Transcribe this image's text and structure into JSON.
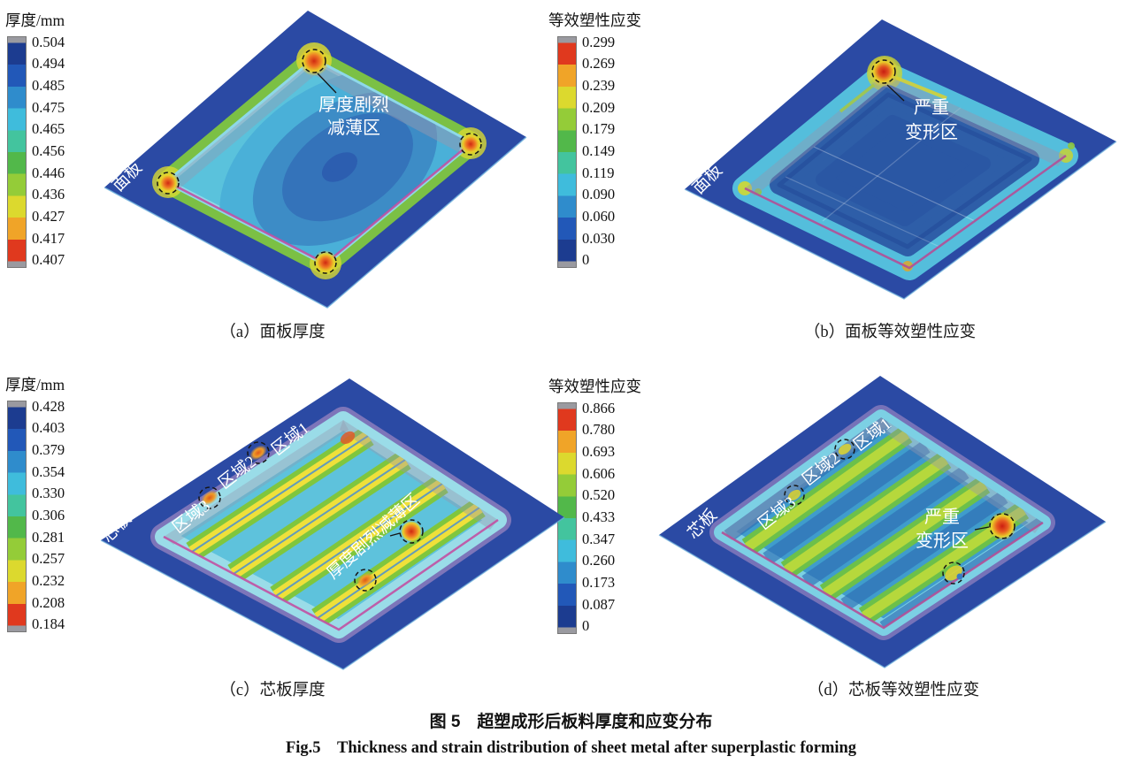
{
  "figure": {
    "title_zh": "图 5　超塑成形后板料厚度和应变分布",
    "title_en": "Fig.5　Thickness and strain distribution of sheet metal after superplastic forming"
  },
  "colors": {
    "plate_blue": "#2b4aa4",
    "cap_gray": "#9a9aa0",
    "scale_thickness": [
      "#1c3c90",
      "#2258b8",
      "#2f8ccc",
      "#3fbcdc",
      "#43c49e",
      "#52b84a",
      "#94cc38",
      "#dcd92e",
      "#f0a428",
      "#e0391e"
    ],
    "scale_strain": [
      "#e0391e",
      "#f0a428",
      "#dcd92e",
      "#94cc38",
      "#52b84a",
      "#43c49e",
      "#3fbcdc",
      "#2f8ccc",
      "#2258b8",
      "#1c3c90"
    ]
  },
  "panels": {
    "a": {
      "caption": "（a）面板厚度",
      "legend_title": "厚度/mm",
      "legend_values": [
        "0.504",
        "0.494",
        "0.485",
        "0.475",
        "0.465",
        "0.456",
        "0.446",
        "0.436",
        "0.427",
        "0.417",
        "0.407"
      ],
      "part_label": "面板",
      "callout_line1": "厚度剧烈",
      "callout_line2": "减薄区"
    },
    "b": {
      "caption": "（b）面板等效塑性应变",
      "legend_title": "等效塑性应变",
      "legend_values": [
        "0.299",
        "0.269",
        "0.239",
        "0.209",
        "0.179",
        "0.149",
        "0.119",
        "0.090",
        "0.060",
        "0.030",
        "0"
      ],
      "part_label": "面板",
      "callout_line1": "严重",
      "callout_line2": "变形区"
    },
    "c": {
      "caption": "（c）芯板厚度",
      "legend_title": "厚度/mm",
      "legend_values": [
        "0.428",
        "0.403",
        "0.379",
        "0.354",
        "0.330",
        "0.306",
        "0.281",
        "0.257",
        "0.232",
        "0.208",
        "0.184"
      ],
      "part_label": "芯板",
      "region1": "区域1",
      "region2": "区域2",
      "region3": "区域3",
      "callout": "厚度剧烈减薄区"
    },
    "d": {
      "caption": "（d）芯板等效塑性应变",
      "legend_title": "等效塑性应变",
      "legend_values": [
        "0.866",
        "0.780",
        "0.693",
        "0.606",
        "0.520",
        "0.433",
        "0.347",
        "0.260",
        "0.173",
        "0.087",
        "0"
      ],
      "part_label": "芯板",
      "region1": "区域1",
      "region2": "区域2",
      "region3": "区域3",
      "callout_line1": "严重",
      "callout_line2": "变形区"
    }
  },
  "chart_data": [
    {
      "panel": "a",
      "type": "heatmap",
      "subtype": "FEM-contour",
      "quantity": "厚度/mm",
      "target": "面板",
      "legend_ticks": [
        0.504,
        0.494,
        0.485,
        0.475,
        0.465,
        0.456,
        0.446,
        0.436,
        0.427,
        0.417,
        0.407
      ],
      "min": 0.407,
      "max": 0.504,
      "colormap": "blue(max)-to-red(min)",
      "annotations": [
        "厚度剧烈减薄区",
        "面板"
      ]
    },
    {
      "panel": "b",
      "type": "heatmap",
      "subtype": "FEM-contour",
      "quantity": "等效塑性应变",
      "target": "面板",
      "legend_ticks": [
        0.299,
        0.269,
        0.239,
        0.209,
        0.179,
        0.149,
        0.119,
        0.09,
        0.06,
        0.03,
        0
      ],
      "min": 0,
      "max": 0.299,
      "colormap": "red(max)-to-blue(min)",
      "annotations": [
        "严重变形区",
        "面板"
      ]
    },
    {
      "panel": "c",
      "type": "heatmap",
      "subtype": "FEM-contour",
      "quantity": "厚度/mm",
      "target": "芯板",
      "legend_ticks": [
        0.428,
        0.403,
        0.379,
        0.354,
        0.33,
        0.306,
        0.281,
        0.257,
        0.232,
        0.208,
        0.184
      ],
      "min": 0.184,
      "max": 0.428,
      "colormap": "blue(max)-to-red(min)",
      "annotations": [
        "区域1",
        "区域2",
        "区域3",
        "厚度剧烈减薄区",
        "芯板"
      ]
    },
    {
      "panel": "d",
      "type": "heatmap",
      "subtype": "FEM-contour",
      "quantity": "等效塑性应变",
      "target": "芯板",
      "legend_ticks": [
        0.866,
        0.78,
        0.693,
        0.606,
        0.52,
        0.433,
        0.347,
        0.26,
        0.173,
        0.087,
        0
      ],
      "min": 0,
      "max": 0.866,
      "colormap": "red(max)-to-blue(min)",
      "annotations": [
        "区域1",
        "区域2",
        "区域3",
        "严重变形区",
        "芯板"
      ]
    }
  ]
}
